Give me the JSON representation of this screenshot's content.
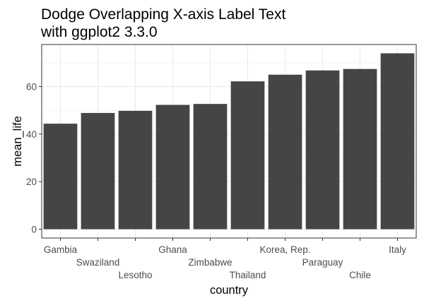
{
  "title_lines": [
    "Dodge Overlapping X-axis Label Text",
    "with ggplot2 3.3.0"
  ],
  "chart_data": {
    "type": "bar",
    "title": "Dodge Overlapping X-axis Label Text with ggplot2 3.3.0",
    "xlabel": "country",
    "ylabel": "mean_life",
    "categories": [
      "Gambia",
      "Swaziland",
      "Lesotho",
      "Ghana",
      "Zimbabwe",
      "Thailand",
      "Korea, Rep.",
      "Paraguay",
      "Chile",
      "Italy"
    ],
    "values": [
      44.4,
      48.9,
      49.8,
      52.3,
      52.7,
      62.2,
      65.0,
      66.8,
      67.4,
      74.0
    ],
    "ylim": [
      -3.7,
      77.7
    ],
    "yticks": [
      0,
      20,
      40,
      60
    ],
    "grid": true,
    "theme": "bw",
    "x_label_dodge": 3,
    "bar_color": "#454545",
    "grid_color": "#ebebeb",
    "panel_border_color": "#333333"
  }
}
